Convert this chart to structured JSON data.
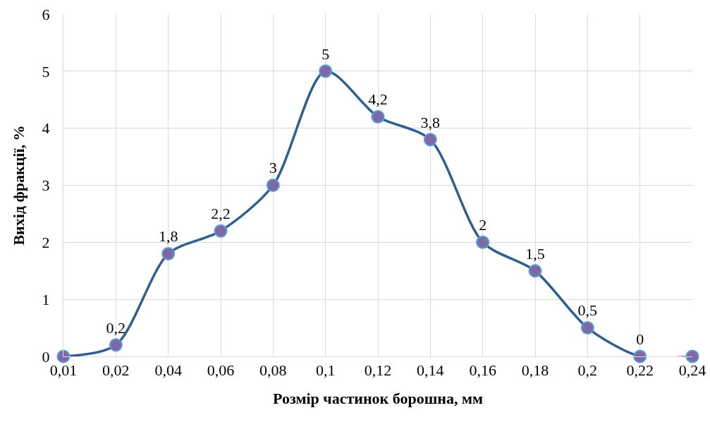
{
  "chart_data": {
    "type": "line",
    "xlabel": "Розмір частинок борошна, мм",
    "ylabel": "Вихід фракції, %",
    "categories": [
      "0,01",
      "0,02",
      "0,04",
      "0,06",
      "0,08",
      "0,1",
      "0,12",
      "0,14",
      "0,16",
      "0,18",
      "0,2",
      "0,22",
      "0,24"
    ],
    "series": [
      {
        "color": "#2f5f8f",
        "values": [
          0,
          0.2,
          1.8,
          2.2,
          3,
          5,
          4.2,
          3.8,
          2,
          1.5,
          0.5,
          0,
          0
        ],
        "value_labels": [
          null,
          "0,2",
          "1,8",
          "2,2",
          "3",
          "5",
          "4,2",
          "3,8",
          "2",
          "1,5",
          "0,5",
          "0",
          null
        ]
      }
    ],
    "ylim": [
      0,
      6
    ],
    "yticks": [
      0,
      1,
      2,
      3,
      4,
      5,
      6
    ],
    "grid": true,
    "marker": "circle",
    "line_style": "solid",
    "legend": false
  }
}
